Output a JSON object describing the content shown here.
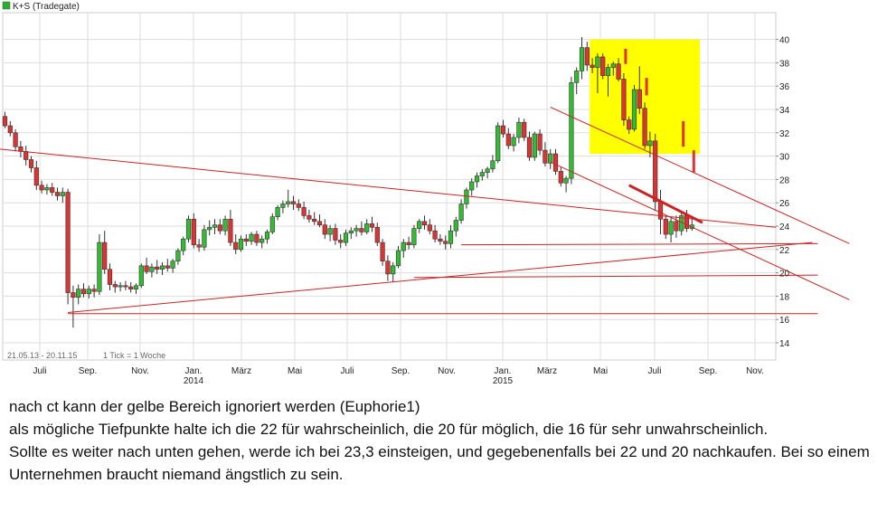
{
  "chart_data": {
    "type": "candlestick",
    "title": "K+S (Tradegate)",
    "legend_color": "#33aa33",
    "period_label": "21.05.13 - 20.11.15",
    "tick_label": "1 Tick = 1 Woche",
    "y_range": [
      13,
      41
    ],
    "y_ticks": [
      14,
      16,
      18,
      20,
      22,
      24,
      26,
      28,
      30,
      32,
      34,
      36,
      38,
      40
    ],
    "x_ticks": [
      "Juli",
      "Sep.",
      "Nov.",
      "Jan.",
      "März",
      "Mai",
      "Juli",
      "Sep.",
      "Nov.",
      "Jan.",
      "März",
      "Mai",
      "Juli",
      "Sep.",
      "Nov."
    ],
    "year_labels": [
      "2014",
      "2015"
    ],
    "colors": {
      "up": "#33bb33",
      "down": "#dd3333",
      "line": "#cc2222",
      "highlight": "#ffff00",
      "grid": "#dddddd"
    },
    "candles": [
      [
        33.4,
        33.8,
        32.4,
        32.6
      ],
      [
        32.6,
        33.0,
        31.7,
        32.0
      ],
      [
        32.0,
        32.3,
        30.4,
        30.8
      ],
      [
        30.8,
        31.3,
        29.9,
        30.4
      ],
      [
        30.4,
        30.9,
        29.2,
        29.7
      ],
      [
        29.7,
        30.0,
        28.6,
        29.0
      ],
      [
        29.0,
        29.6,
        27.1,
        27.5
      ],
      [
        27.5,
        27.9,
        26.8,
        27.1
      ],
      [
        27.1,
        27.6,
        26.7,
        27.3
      ],
      [
        27.3,
        27.7,
        26.6,
        26.9
      ],
      [
        26.9,
        27.3,
        26.2,
        26.6
      ],
      [
        26.6,
        27.3,
        26.0,
        26.9
      ],
      [
        26.9,
        27.2,
        17.3,
        18.3
      ],
      [
        18.3,
        18.9,
        15.3,
        17.9
      ],
      [
        17.9,
        19.0,
        17.3,
        18.6
      ],
      [
        18.6,
        19.1,
        17.9,
        18.2
      ],
      [
        18.2,
        18.9,
        17.8,
        18.6
      ],
      [
        18.6,
        19.0,
        17.9,
        18.4
      ],
      [
        18.4,
        23.3,
        18.1,
        22.6
      ],
      [
        22.6,
        23.6,
        19.9,
        20.3
      ],
      [
        20.3,
        20.8,
        18.5,
        19.0
      ],
      [
        19.0,
        19.3,
        18.3,
        18.8
      ],
      [
        18.8,
        19.2,
        18.4,
        18.9
      ],
      [
        18.9,
        19.3,
        18.5,
        18.8
      ],
      [
        18.8,
        19.2,
        18.3,
        18.6
      ],
      [
        18.6,
        19.1,
        18.2,
        18.9
      ],
      [
        18.9,
        20.8,
        18.7,
        20.6
      ],
      [
        20.6,
        21.3,
        19.9,
        20.1
      ],
      [
        20.1,
        20.8,
        19.6,
        20.5
      ],
      [
        20.5,
        21.1,
        19.9,
        20.3
      ],
      [
        20.3,
        20.9,
        19.8,
        20.6
      ],
      [
        20.6,
        21.2,
        20.1,
        20.4
      ],
      [
        20.4,
        21.2,
        20.0,
        21.0
      ],
      [
        21.0,
        22.1,
        20.7,
        21.9
      ],
      [
        21.9,
        23.1,
        21.5,
        22.9
      ],
      [
        22.9,
        24.9,
        22.6,
        24.6
      ],
      [
        24.6,
        25.1,
        22.1,
        22.4
      ],
      [
        22.4,
        22.9,
        21.8,
        22.2
      ],
      [
        22.2,
        24.1,
        21.9,
        23.7
      ],
      [
        23.7,
        24.5,
        23.2,
        23.9
      ],
      [
        23.9,
        24.6,
        23.3,
        24.1
      ],
      [
        24.1,
        24.6,
        23.3,
        23.6
      ],
      [
        23.6,
        24.9,
        23.2,
        24.6
      ],
      [
        24.6,
        25.4,
        22.3,
        22.6
      ],
      [
        22.6,
        23.3,
        21.6,
        22.0
      ],
      [
        22.0,
        23.2,
        21.8,
        22.9
      ],
      [
        22.9,
        23.3,
        22.3,
        22.7
      ],
      [
        22.7,
        23.5,
        22.4,
        23.3
      ],
      [
        23.3,
        23.6,
        22.3,
        22.6
      ],
      [
        22.6,
        23.2,
        22.1,
        22.9
      ],
      [
        22.9,
        23.7,
        22.5,
        23.5
      ],
      [
        23.5,
        25.1,
        23.3,
        24.8
      ],
      [
        24.8,
        25.8,
        24.5,
        25.6
      ],
      [
        25.6,
        26.2,
        25.1,
        25.9
      ],
      [
        25.9,
        27.1,
        25.6,
        26.1
      ],
      [
        26.1,
        26.6,
        25.4,
        25.9
      ],
      [
        25.9,
        26.3,
        25.3,
        25.6
      ],
      [
        25.6,
        26.1,
        24.6,
        24.9
      ],
      [
        24.9,
        25.4,
        24.3,
        24.6
      ],
      [
        24.6,
        25.2,
        24.1,
        24.4
      ],
      [
        24.4,
        25.0,
        23.9,
        24.1
      ],
      [
        24.1,
        24.6,
        22.9,
        23.3
      ],
      [
        23.3,
        24.1,
        22.7,
        23.8
      ],
      [
        23.8,
        24.2,
        22.4,
        22.8
      ],
      [
        22.8,
        23.3,
        22.1,
        22.6
      ],
      [
        22.6,
        23.7,
        22.3,
        23.4
      ],
      [
        23.4,
        23.9,
        22.9,
        23.6
      ],
      [
        23.6,
        24.1,
        23.1,
        23.8
      ],
      [
        23.8,
        24.4,
        23.2,
        23.5
      ],
      [
        23.5,
        24.6,
        23.3,
        24.2
      ],
      [
        24.2,
        24.8,
        23.5,
        23.9
      ],
      [
        23.9,
        24.3,
        22.3,
        22.6
      ],
      [
        22.6,
        22.9,
        20.6,
        21.0
      ],
      [
        21.0,
        21.5,
        19.3,
        19.9
      ],
      [
        19.9,
        20.9,
        19.2,
        20.6
      ],
      [
        20.6,
        22.3,
        20.4,
        21.9
      ],
      [
        21.9,
        22.9,
        21.3,
        22.6
      ],
      [
        22.6,
        23.1,
        22.0,
        22.4
      ],
      [
        22.4,
        24.1,
        22.1,
        23.8
      ],
      [
        23.8,
        24.6,
        23.4,
        24.4
      ],
      [
        24.4,
        24.9,
        23.7,
        24.1
      ],
      [
        24.1,
        24.6,
        23.3,
        23.6
      ],
      [
        23.6,
        24.1,
        22.6,
        22.9
      ],
      [
        22.9,
        23.3,
        22.4,
        22.7
      ],
      [
        22.7,
        23.2,
        22.0,
        22.5
      ],
      [
        22.5,
        24.1,
        22.1,
        23.6
      ],
      [
        23.6,
        24.8,
        23.1,
        24.5
      ],
      [
        24.5,
        26.3,
        24.2,
        25.9
      ],
      [
        25.9,
        27.3,
        25.5,
        27.1
      ],
      [
        27.1,
        28.1,
        26.6,
        27.8
      ],
      [
        27.8,
        28.6,
        27.3,
        28.3
      ],
      [
        28.3,
        28.9,
        27.9,
        28.6
      ],
      [
        28.6,
        29.1,
        28.1,
        28.9
      ],
      [
        28.9,
        30.1,
        28.6,
        29.6
      ],
      [
        29.6,
        32.9,
        29.4,
        32.6
      ],
      [
        32.6,
        33.1,
        31.6,
        31.9
      ],
      [
        31.9,
        32.4,
        30.6,
        30.9
      ],
      [
        30.9,
        31.9,
        30.4,
        31.6
      ],
      [
        31.6,
        33.3,
        31.1,
        32.9
      ],
      [
        32.9,
        33.2,
        31.3,
        31.6
      ],
      [
        31.6,
        32.1,
        29.6,
        29.9
      ],
      [
        29.9,
        32.1,
        29.6,
        31.9
      ],
      [
        31.9,
        32.3,
        30.1,
        30.5
      ],
      [
        30.5,
        31.2,
        29.1,
        29.4
      ],
      [
        29.4,
        30.6,
        28.9,
        30.2
      ],
      [
        30.2,
        30.6,
        28.4,
        28.7
      ],
      [
        28.7,
        29.1,
        27.4,
        27.7
      ],
      [
        27.7,
        28.3,
        26.9,
        28.1
      ],
      [
        28.1,
        36.8,
        27.6,
        36.3
      ],
      [
        36.3,
        37.6,
        35.3,
        37.3
      ],
      [
        37.3,
        40.2,
        36.6,
        39.3
      ],
      [
        39.3,
        39.8,
        37.3,
        37.8
      ],
      [
        37.8,
        38.4,
        37.1,
        37.6
      ],
      [
        37.6,
        38.8,
        35.4,
        38.5
      ],
      [
        38.5,
        38.8,
        36.6,
        36.9
      ],
      [
        36.9,
        37.9,
        35.1,
        37.6
      ],
      [
        37.6,
        38.1,
        36.9,
        37.9
      ],
      [
        37.9,
        38.4,
        36.4,
        36.6
      ],
      [
        36.6,
        37.1,
        32.6,
        33.1
      ],
      [
        33.1,
        33.4,
        31.9,
        32.3
      ],
      [
        32.3,
        36.1,
        32.1,
        35.7
      ],
      [
        35.7,
        37.7,
        33.6,
        34.1
      ],
      [
        34.1,
        34.6,
        30.6,
        30.9
      ],
      [
        30.9,
        32.1,
        29.9,
        31.3
      ],
      [
        31.3,
        31.9,
        25.3,
        26.1
      ],
      [
        26.1,
        27.1,
        23.3,
        24.6
      ],
      [
        24.6,
        24.9,
        22.9,
        23.3
      ],
      [
        23.3,
        24.8,
        22.6,
        24.4
      ],
      [
        24.4,
        24.9,
        23.0,
        23.6
      ],
      [
        23.6,
        25.3,
        23.2,
        24.9
      ],
      [
        24.9,
        25.4,
        23.5,
        23.8
      ],
      [
        23.8,
        24.6,
        23.6,
        24.1
      ]
    ],
    "highlight_box": {
      "from_index": 112,
      "to_index": 132,
      "y_from": 30.2,
      "y_to": 40
    },
    "highlight_strokes": [
      {
        "index": 118,
        "y_from": 39.2,
        "y_to": 37.9
      },
      {
        "index": 122,
        "y_from": 36.7,
        "y_to": 35.2
      },
      {
        "index": 129,
        "y_from": 33.0,
        "y_to": 30.8
      },
      {
        "index": 131,
        "y_from": 30.5,
        "y_to": 28.6
      }
    ],
    "trendlines": [
      {
        "from": [
          -1,
          30.6
        ],
        "to": [
          147,
          23.9
        ],
        "width": 1
      },
      {
        "from": [
          12,
          16.5
        ],
        "to": [
          155,
          16.5
        ],
        "width": 1
      },
      {
        "from": [
          12,
          16.6
        ],
        "to": [
          154,
          22.6
        ],
        "width": 1
      },
      {
        "from": [
          78,
          19.6
        ],
        "to": [
          155,
          19.8
        ],
        "width": 1
      },
      {
        "from": [
          87,
          22.4
        ],
        "to": [
          155,
          22.5
        ],
        "width": 1
      },
      {
        "from": [
          104,
          34.2
        ],
        "to": [
          161,
          22.5
        ],
        "width": 1
      },
      {
        "from": [
          104,
          29.5
        ],
        "to": [
          161,
          17.7
        ],
        "width": 1
      },
      {
        "from": [
          119,
          27.5
        ],
        "to": [
          133,
          24.3
        ],
        "width": 3
      }
    ]
  },
  "comment": {
    "lines": [
      "nach ct kann der gelbe Bereich ignoriert werden (Euphorie1)",
      "als mögliche Tiefpunkte halte ich die 22 für wahrscheinlich, die 20 für möglich, die 16 für sehr unwahrscheinlich.",
      "Sollte es weiter nach unten gehen, werde ich bei 23,3 einsteigen, und gegebenenfalls bei 22 und 20 nachkaufen. Bei so einem Unternehmen braucht niemand ängstlich zu sein."
    ]
  }
}
